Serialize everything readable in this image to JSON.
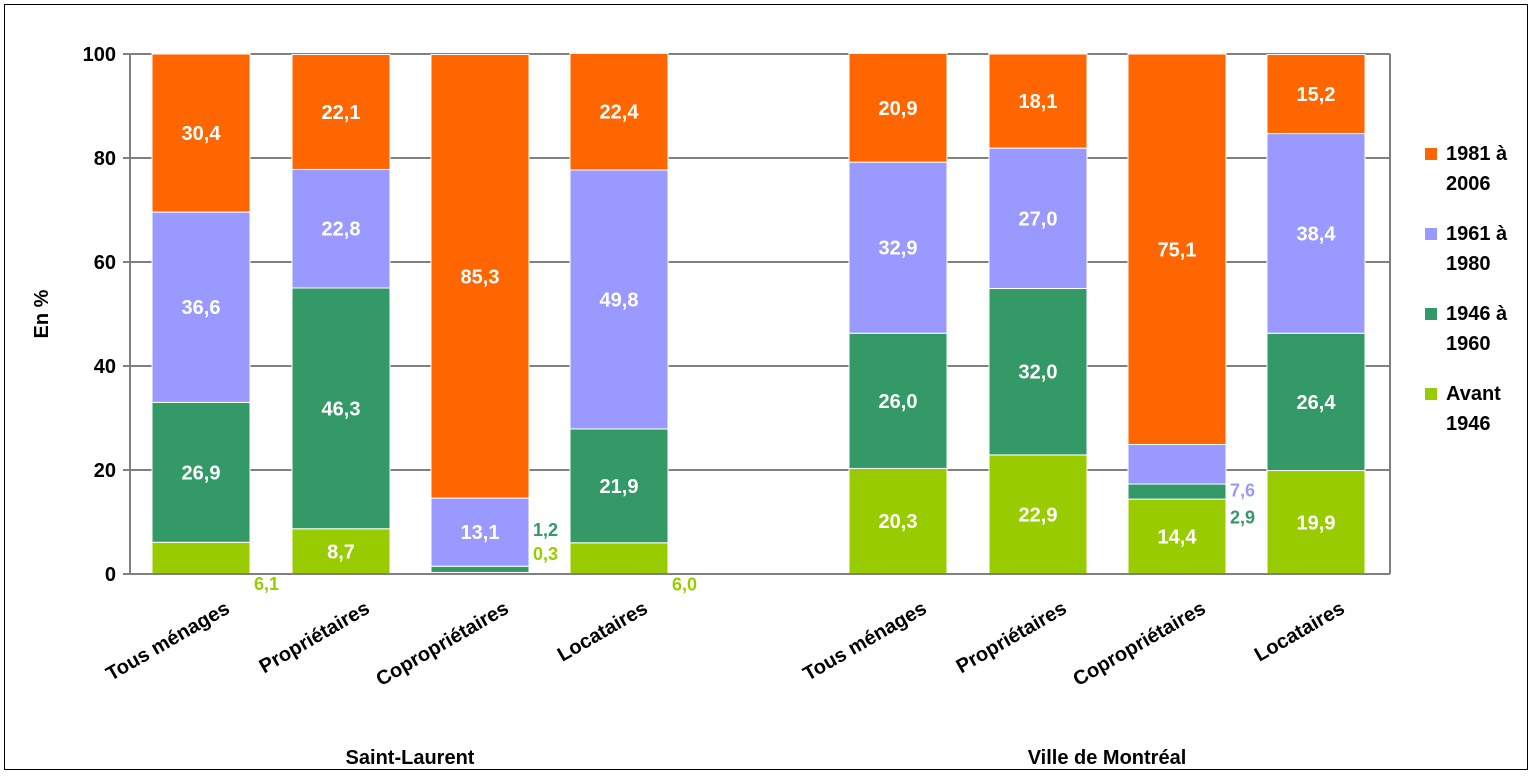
{
  "chart_data": {
    "type": "bar",
    "stacked": true,
    "ylabel": "En %",
    "ylim": [
      0,
      100
    ],
    "yticks": [
      "0",
      "20",
      "40",
      "60",
      "80",
      "100"
    ],
    "grid": true,
    "legend_position": "right",
    "groups": [
      {
        "label": "Saint-Laurent",
        "categories": [
          "Tous ménages",
          "Propriétaires",
          "Copropriétaires",
          "Locataires"
        ]
      },
      {
        "label": "Ville de Montréal",
        "categories": [
          "Tous ménages",
          "Propriétaires",
          "Copropriétaires",
          "Locataires"
        ]
      }
    ],
    "series": [
      {
        "name": "Avant 1946",
        "color": "#99cc00",
        "values": [
          6.1,
          8.7,
          0.3,
          6.0,
          20.3,
          22.9,
          14.4,
          19.9
        ],
        "labels": [
          "6,1",
          "8,7",
          "0,3",
          "6,0",
          "20,3",
          "22,9",
          "14,4",
          "19,9"
        ]
      },
      {
        "name": "1946 à 1960",
        "color": "#339966",
        "values": [
          26.9,
          46.3,
          1.2,
          21.9,
          26.0,
          32.0,
          2.9,
          26.4
        ],
        "labels": [
          "26,9",
          "46,3",
          "1,2",
          "21,9",
          "26,0",
          "32,0",
          "2,9",
          "26,4"
        ]
      },
      {
        "name": "1961 à 1980",
        "color": "#9999ff",
        "values": [
          36.6,
          22.8,
          13.1,
          49.8,
          32.9,
          27.0,
          7.6,
          38.4
        ],
        "labels": [
          "36,6",
          "22,8",
          "13,1",
          "49,8",
          "32,9",
          "27,0",
          "7,6",
          "38,4"
        ]
      },
      {
        "name": "1981 à 2006",
        "color": "#ff6600",
        "values": [
          30.4,
          22.1,
          85.3,
          22.4,
          20.9,
          18.1,
          75.1,
          15.2
        ],
        "labels": [
          "30,4",
          "22,1",
          "85,3",
          "22,4",
          "20,9",
          "18,1",
          "75,1",
          "15,2"
        ]
      }
    ],
    "legend_items": [
      {
        "line1": "1981 à",
        "line2": "2006",
        "color": "#ff6600"
      },
      {
        "line1": "1961 à",
        "line2": "1980",
        "color": "#9999ff"
      },
      {
        "line1": "1946 à",
        "line2": "1960",
        "color": "#339966"
      },
      {
        "line1": "Avant",
        "line2": "1946",
        "color": "#99cc00"
      }
    ]
  }
}
